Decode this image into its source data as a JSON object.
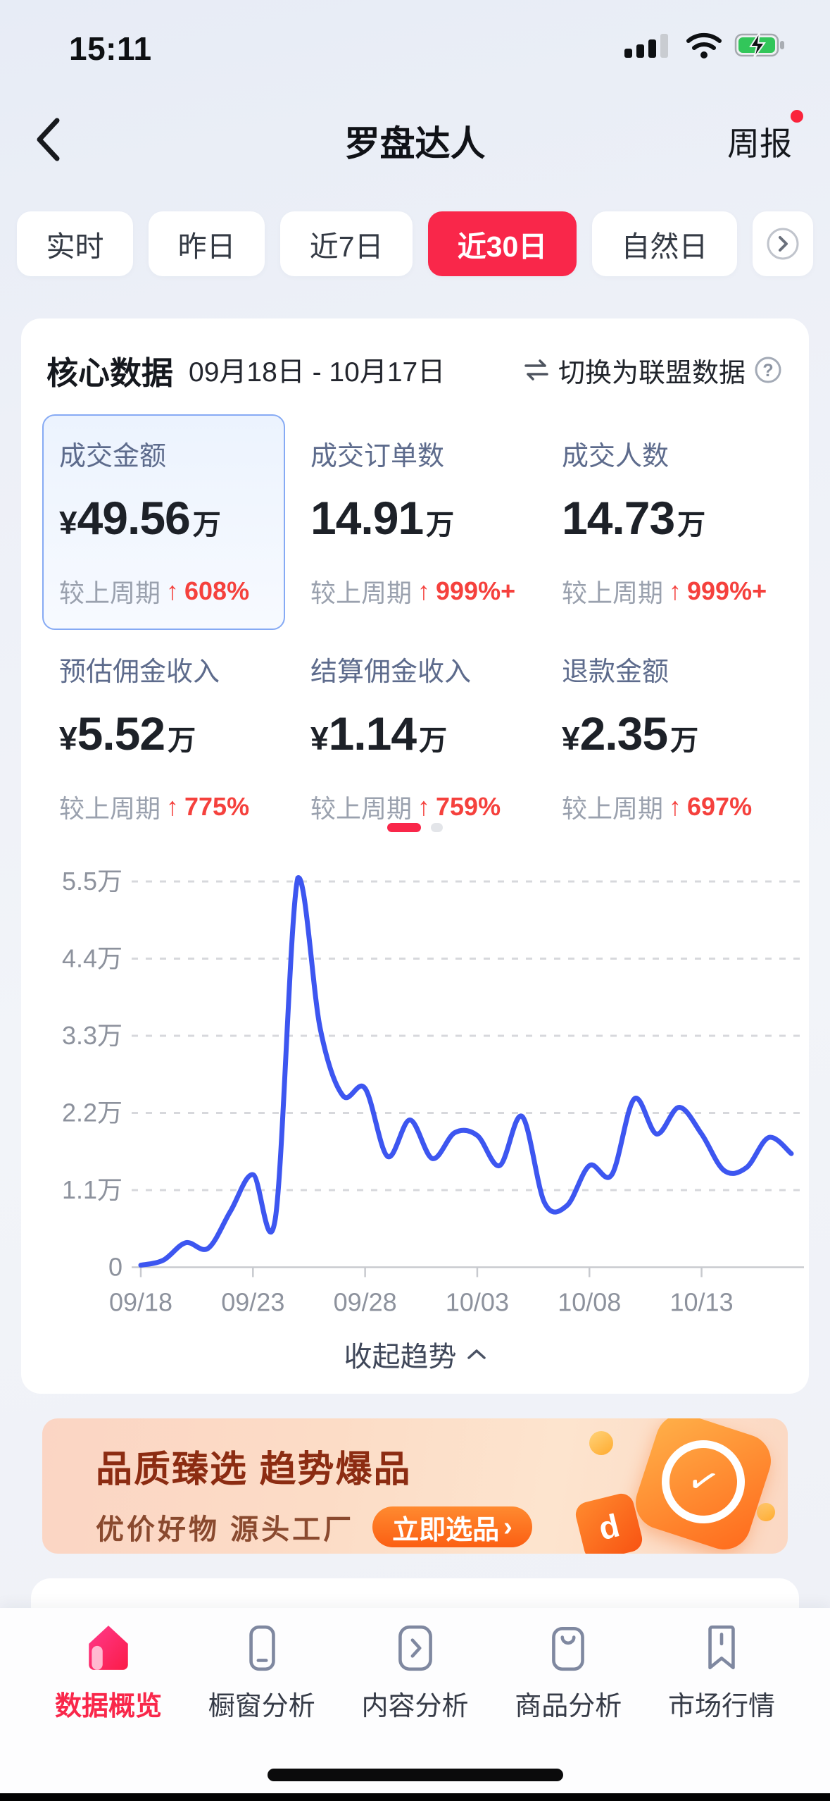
{
  "status_bar": {
    "time": "15:11"
  },
  "header": {
    "title": "罗盘达人",
    "report_label": "周报"
  },
  "tabs": {
    "items": [
      {
        "id": "realtime",
        "label": "实时",
        "selected": false
      },
      {
        "id": "yesterday",
        "label": "昨日",
        "selected": false
      },
      {
        "id": "last-7d",
        "label": "近7日",
        "selected": false
      },
      {
        "id": "last-30d",
        "label": "近30日",
        "selected": true
      },
      {
        "id": "natural-day",
        "label": "自然日",
        "selected": false
      }
    ]
  },
  "core_card": {
    "title": "核心数据",
    "date_range": "09月18日 - 10月17日",
    "switch_label": "切换为联盟数据",
    "compare_label": "较上周期",
    "metrics": [
      {
        "id": "gmv",
        "label": "成交金额",
        "prefix": "¥",
        "value": "49.56",
        "unit": "万",
        "change": "608%",
        "direction": "up",
        "selected": true
      },
      {
        "id": "orders",
        "label": "成交订单数",
        "prefix": "",
        "value": "14.91",
        "unit": "万",
        "change": "999%+",
        "direction": "up",
        "selected": false
      },
      {
        "id": "buyers",
        "label": "成交人数",
        "prefix": "",
        "value": "14.73",
        "unit": "万",
        "change": "999%+",
        "direction": "up",
        "selected": false
      },
      {
        "id": "est-commission",
        "label": "预估佣金收入",
        "prefix": "¥",
        "value": "5.52",
        "unit": "万",
        "change": "775%",
        "direction": "up",
        "selected": false
      },
      {
        "id": "settled-commission",
        "label": "结算佣金收入",
        "prefix": "¥",
        "value": "1.14",
        "unit": "万",
        "change": "759%",
        "direction": "up",
        "selected": false
      },
      {
        "id": "refund",
        "label": "退款金额",
        "prefix": "¥",
        "value": "2.35",
        "unit": "万",
        "change": "697%",
        "direction": "up",
        "selected": false
      }
    ],
    "pagination": {
      "pages": 2,
      "active": 1
    },
    "collapse_label": "收起趋势"
  },
  "chart_data": {
    "type": "line",
    "title": "",
    "x": [
      "09/18",
      "09/19",
      "09/20",
      "09/21",
      "09/22",
      "09/23",
      "09/24",
      "09/25",
      "09/26",
      "09/27",
      "09/28",
      "09/29",
      "09/30",
      "10/01",
      "10/02",
      "10/03",
      "10/04",
      "10/05",
      "10/06",
      "10/07",
      "10/08",
      "10/09",
      "10/10",
      "10/11",
      "10/12",
      "10/13",
      "10/14",
      "10/15",
      "10/16",
      "10/17"
    ],
    "series": [
      {
        "name": "成交金额",
        "unit": "万",
        "values": [
          0.03,
          0.1,
          0.35,
          0.27,
          0.8,
          1.32,
          0.7,
          5.55,
          3.4,
          2.45,
          2.55,
          1.58,
          2.1,
          1.55,
          1.92,
          1.88,
          1.45,
          2.15,
          0.92,
          0.88,
          1.45,
          1.32,
          2.4,
          1.9,
          2.28,
          1.9,
          1.38,
          1.42,
          1.85,
          1.62
        ]
      }
    ],
    "ylim": [
      0,
      5.5
    ],
    "yticks": [
      "0",
      "1.1万",
      "2.2万",
      "3.3万",
      "4.4万",
      "5.5万"
    ],
    "xticks": [
      "09/18",
      "09/23",
      "09/28",
      "10/03",
      "10/08",
      "10/13"
    ],
    "xtick_days": [
      0,
      5,
      10,
      15,
      20,
      25
    ],
    "grid": "dashed-horizontal",
    "legend": "none",
    "line_color": "#3d56f0"
  },
  "banner": {
    "headline": "品质臻选 趋势爆品",
    "subline": "优价好物  源头工厂",
    "cta_label": "立即选品",
    "cta_arrow": "›"
  },
  "tabbar": {
    "items": [
      {
        "id": "data-overview",
        "label": "数据概览",
        "icon": "home-icon",
        "active": true
      },
      {
        "id": "showcase-analysis",
        "label": "橱窗分析",
        "icon": "showcase-icon",
        "active": false
      },
      {
        "id": "content-analysis",
        "label": "内容分析",
        "icon": "content-chevron-icon",
        "active": false
      },
      {
        "id": "product-analysis",
        "label": "商品分析",
        "icon": "product-bag-icon",
        "active": false
      },
      {
        "id": "market-trends",
        "label": "市场行情",
        "icon": "market-bookmark-icon",
        "active": false
      }
    ]
  },
  "colors": {
    "accent": "#f9274a",
    "up_red": "#f5413d",
    "label_blue": "#5d6b8c",
    "muted_gray": "#9aa1ae",
    "nav_ink": "#363b47",
    "line_blue": "#3d56f0",
    "battery_green": "#32c65a",
    "banner_brown": "#8c2c12"
  }
}
